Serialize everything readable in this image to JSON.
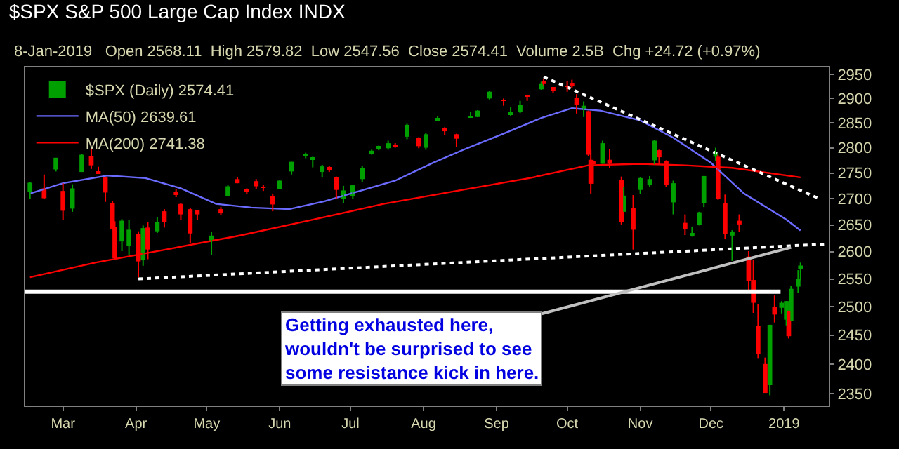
{
  "chart_data": {
    "type": "candlestick",
    "title": "$SPX S&P 500 Large Cap Index INDX",
    "subtitle": "8-Jan-2019   Open 2568.11  High 2579.82  Low 2547.56  Close 2574.41  Volume 2.5B  Chg +24.72 (+0.97%)",
    "log": "y",
    "grid": false,
    "legend": "top left",
    "line_style": "solid",
    "marker": "none",
    "xlim": [
      "2018-02-13",
      "2019-01-20"
    ],
    "xticks": [
      {
        "value": "2018-03-01",
        "label": "Mar"
      },
      {
        "value": "2018-04-01",
        "label": "Apr"
      },
      {
        "value": "2018-05-01",
        "label": "May"
      },
      {
        "value": "2018-06-01",
        "label": "Jun"
      },
      {
        "value": "2018-07-01",
        "label": "Jul"
      },
      {
        "value": "2018-08-01",
        "label": "Aug"
      },
      {
        "value": "2018-09-01",
        "label": "Sep"
      },
      {
        "value": "2018-10-01",
        "label": "Oct"
      },
      {
        "value": "2018-11-01",
        "label": "Nov"
      },
      {
        "value": "2018-12-01",
        "label": "Dec"
      },
      {
        "value": "2019-01-01",
        "label": "2019"
      }
    ],
    "ylim": [
      2330,
      2965
    ],
    "yticks": [
      2350,
      2400,
      2450,
      2500,
      2550,
      2600,
      2650,
      2700,
      2750,
      2800,
      2850,
      2900,
      2950
    ],
    "ref_lines": [
      {
        "axis": "y",
        "value": 2527,
        "color": "#ffffff",
        "line_style": "solid"
      }
    ],
    "annotations": [
      {
        "text": "Getting exhausted here,\nwouldn't be surprised to see\nsome resistance kick in here.",
        "x": "2019-01-04",
        "y": 2608
      }
    ],
    "series": [
      {
        "name": "$SPX (Daily) 2574.41",
        "x": [
          "2018-02-15",
          "2018-02-21",
          "2018-02-26",
          "2018-03-01",
          "2018-03-05",
          "2018-03-09",
          "2018-03-13",
          "2018-03-16",
          "2018-03-19",
          "2018-03-22",
          "2018-03-23",
          "2018-03-26",
          "2018-03-29",
          "2018-04-02",
          "2018-04-04",
          "2018-04-06",
          "2018-04-10",
          "2018-04-13",
          "2018-04-18",
          "2018-04-20",
          "2018-04-24",
          "2018-04-27",
          "2018-05-03",
          "2018-05-07",
          "2018-05-10",
          "2018-05-14",
          "2018-05-18",
          "2018-05-22",
          "2018-05-25",
          "2018-05-29",
          "2018-06-01",
          "2018-06-06",
          "2018-06-12",
          "2018-06-15",
          "2018-06-19",
          "2018-06-22",
          "2018-06-25",
          "2018-06-28",
          "2018-07-02",
          "2018-07-06",
          "2018-07-10",
          "2018-07-13",
          "2018-07-17",
          "2018-07-20",
          "2018-07-25",
          "2018-07-30",
          "2018-08-02",
          "2018-08-07",
          "2018-08-10",
          "2018-08-15",
          "2018-08-21",
          "2018-08-24",
          "2018-08-29",
          "2018-09-04",
          "2018-09-07",
          "2018-09-11",
          "2018-09-14",
          "2018-09-20",
          "2018-09-21",
          "2018-09-25",
          "2018-10-01",
          "2018-10-03",
          "2018-10-05",
          "2018-10-08",
          "2018-10-10",
          "2018-10-11",
          "2018-10-12",
          "2018-10-16",
          "2018-10-19",
          "2018-10-24",
          "2018-10-25",
          "2018-10-29",
          "2018-11-01",
          "2018-11-05",
          "2018-11-07",
          "2018-11-09",
          "2018-11-12",
          "2018-11-15",
          "2018-11-20",
          "2018-11-23",
          "2018-11-26",
          "2018-11-28",
          "2018-12-03",
          "2018-12-04",
          "2018-12-07",
          "2018-12-10",
          "2018-12-13",
          "2018-12-17",
          "2018-12-19",
          "2018-12-21",
          "2018-12-24",
          "2018-12-26",
          "2018-12-28",
          "2018-12-31",
          "2019-01-02",
          "2019-01-03",
          "2019-01-04",
          "2019-01-07",
          "2019-01-08"
        ],
        "ohlc": [
          [
            2713,
            2732,
            2700,
            2731
          ],
          [
            2720,
            2747,
            2700,
            2701
          ],
          [
            2757,
            2780,
            2753,
            2780
          ],
          [
            2715,
            2730,
            2659,
            2677
          ],
          [
            2681,
            2728,
            2675,
            2720
          ],
          [
            2752,
            2787,
            2752,
            2786
          ],
          [
            2784,
            2802,
            2758,
            2765
          ],
          [
            2750,
            2762,
            2749,
            2752
          ],
          [
            2741,
            2741,
            2694,
            2712
          ],
          [
            2691,
            2695,
            2641,
            2643
          ],
          [
            2646,
            2657,
            2586,
            2588
          ],
          [
            2619,
            2661,
            2601,
            2658
          ],
          [
            2610,
            2659,
            2594,
            2641
          ],
          [
            2633,
            2638,
            2553,
            2582
          ],
          [
            2584,
            2649,
            2574,
            2644
          ],
          [
            2645,
            2656,
            2586,
            2604
          ],
          [
            2638,
            2665,
            2635,
            2656
          ],
          [
            2676,
            2680,
            2645,
            2656
          ],
          [
            2710,
            2718,
            2703,
            2708
          ],
          [
            2690,
            2692,
            2660,
            2670
          ],
          [
            2680,
            2683,
            2616,
            2634
          ],
          [
            2675,
            2677,
            2659,
            2670
          ],
          [
            2620,
            2637,
            2594,
            2630
          ],
          [
            2680,
            2684,
            2669,
            2672
          ],
          [
            2705,
            2726,
            2705,
            2724
          ],
          [
            2738,
            2742,
            2730,
            2730
          ],
          [
            2717,
            2720,
            2709,
            2713
          ],
          [
            2734,
            2738,
            2719,
            2724
          ],
          [
            2723,
            2727,
            2715,
            2721
          ],
          [
            2705,
            2710,
            2676,
            2689
          ],
          [
            2719,
            2736,
            2719,
            2735
          ],
          [
            2753,
            2772,
            2747,
            2772
          ],
          [
            2785,
            2790,
            2779,
            2786
          ],
          [
            2777,
            2782,
            2761,
            2780
          ],
          [
            2752,
            2766,
            2741,
            2763
          ],
          [
            2760,
            2764,
            2752,
            2755
          ],
          [
            2742,
            2743,
            2699,
            2717
          ],
          [
            2699,
            2725,
            2692,
            2716
          ],
          [
            2705,
            2727,
            2699,
            2726
          ],
          [
            2738,
            2764,
            2733,
            2760
          ],
          [
            2788,
            2796,
            2786,
            2794
          ],
          [
            2799,
            2804,
            2795,
            2801
          ],
          [
            2799,
            2814,
            2796,
            2809
          ],
          [
            2804,
            2809,
            2800,
            2802
          ],
          [
            2822,
            2848,
            2817,
            2846
          ],
          [
            2819,
            2821,
            2799,
            2803
          ],
          [
            2800,
            2829,
            2796,
            2827
          ],
          [
            2855,
            2864,
            2854,
            2858
          ],
          [
            2838,
            2841,
            2825,
            2833
          ],
          [
            2827,
            2828,
            2802,
            2818
          ],
          [
            2861,
            2873,
            2861,
            2863
          ],
          [
            2862,
            2876,
            2862,
            2875
          ],
          [
            2900,
            2916,
            2898,
            2914
          ],
          [
            2897,
            2900,
            2885,
            2896
          ],
          [
            2868,
            2883,
            2864,
            2872
          ],
          [
            2872,
            2895,
            2870,
            2887
          ],
          [
            2906,
            2908,
            2895,
            2905
          ],
          [
            2919,
            2935,
            2918,
            2930
          ],
          [
            2937,
            2941,
            2927,
            2930
          ],
          [
            2921,
            2923,
            2912,
            2916
          ],
          [
            2926,
            2937,
            2914,
            2924
          ],
          [
            2931,
            2939,
            2921,
            2925
          ],
          [
            2902,
            2909,
            2869,
            2886
          ],
          [
            2877,
            2894,
            2862,
            2885
          ],
          [
            2874,
            2875,
            2784,
            2786
          ],
          [
            2776,
            2796,
            2710,
            2729
          ],
          [
            2771,
            2775,
            2729,
            2768
          ],
          [
            2768,
            2814,
            2768,
            2809
          ],
          [
            2776,
            2797,
            2760,
            2768
          ],
          [
            2737,
            2743,
            2651,
            2656
          ],
          [
            2675,
            2722,
            2675,
            2706
          ],
          [
            2682,
            2707,
            2604,
            2641
          ],
          [
            2717,
            2742,
            2709,
            2740
          ],
          [
            2726,
            2744,
            2723,
            2738
          ],
          [
            2775,
            2815,
            2767,
            2814
          ],
          [
            2795,
            2796,
            2766,
            2781
          ],
          [
            2773,
            2775,
            2722,
            2726
          ],
          [
            2693,
            2735,
            2670,
            2730
          ],
          [
            2654,
            2670,
            2631,
            2642
          ],
          [
            2630,
            2647,
            2628,
            2633
          ],
          [
            2650,
            2675,
            2649,
            2674
          ],
          [
            2692,
            2744,
            2684,
            2744
          ],
          [
            2782,
            2800,
            2774,
            2790
          ],
          [
            2782,
            2786,
            2698,
            2700
          ],
          [
            2691,
            2708,
            2623,
            2633
          ],
          [
            2630,
            2640,
            2583,
            2637
          ],
          [
            2658,
            2670,
            2637,
            2651
          ],
          [
            2591,
            2601,
            2530,
            2546
          ],
          [
            2548,
            2585,
            2489,
            2507
          ],
          [
            2466,
            2505,
            2409,
            2417
          ],
          [
            2400,
            2411,
            2351,
            2351
          ],
          [
            2364,
            2468,
            2347,
            2468
          ],
          [
            2499,
            2520,
            2472,
            2486
          ],
          [
            2498,
            2510,
            2488,
            2507
          ],
          [
            2477,
            2510,
            2467,
            2510
          ],
          [
            2492,
            2493,
            2444,
            2448
          ],
          [
            2475,
            2538,
            2474,
            2532
          ],
          [
            2536,
            2566,
            2525,
            2550
          ],
          [
            2568.11,
            2579.82,
            2547.56,
            2574.41
          ]
        ],
        "colors": [
          "#00a000",
          "#ff0000",
          "#00a000",
          "#ff0000",
          "#00a000",
          "#00a000",
          "#ff0000",
          "#ff0000",
          "#ff0000",
          "#ff0000",
          "#ff0000",
          "#00a000",
          "#00a000",
          "#ff0000",
          "#00a000",
          "#ff0000",
          "#00a000",
          "#ff0000",
          "#ff0000",
          "#ff0000",
          "#ff0000",
          "#ff0000",
          "#00a000",
          "#ff0000",
          "#00a000",
          "#ff0000",
          "#ff0000",
          "#ff0000",
          "#ff0000",
          "#ff0000",
          "#00a000",
          "#00a000",
          "#00a000",
          "#00a000",
          "#00a000",
          "#ff0000",
          "#ff0000",
          "#00a000",
          "#00a000",
          "#00a000",
          "#00a000",
          "#00a000",
          "#00a000",
          "#ff0000",
          "#00a000",
          "#ff0000",
          "#00a000",
          "#00a000",
          "#ff0000",
          "#ff0000",
          "#00a000",
          "#00a000",
          "#00a000",
          "#ff0000",
          "#00a000",
          "#00a000",
          "#ff0000",
          "#00a000",
          "#ff0000",
          "#ff0000",
          "#ff0000",
          "#ff0000",
          "#ff0000",
          "#00a000",
          "#ff0000",
          "#ff0000",
          "#ff0000",
          "#00a000",
          "#ff0000",
          "#ff0000",
          "#00a000",
          "#ff0000",
          "#00a000",
          "#00a000",
          "#00a000",
          "#ff0000",
          "#ff0000",
          "#00a000",
          "#ff0000",
          "#00a000",
          "#00a000",
          "#00a000",
          "#00a000",
          "#ff0000",
          "#ff0000",
          "#00a000",
          "#ff0000",
          "#ff0000",
          "#ff0000",
          "#ff0000",
          "#ff0000",
          "#00a000",
          "#ff0000",
          "#00a000",
          "#00a000",
          "#ff0000",
          "#00a000",
          "#00a000",
          "#00a000"
        ]
      },
      {
        "name": "MA(50) 2639.61",
        "type": "line",
        "color": "#6b6bff",
        "x": [
          "2018-02-15",
          "2018-03-01",
          "2018-03-20",
          "2018-04-05",
          "2018-04-20",
          "2018-05-05",
          "2018-05-20",
          "2018-06-05",
          "2018-06-20",
          "2018-07-05",
          "2018-07-20",
          "2018-08-05",
          "2018-08-20",
          "2018-09-05",
          "2018-09-20",
          "2018-10-03",
          "2018-10-15",
          "2018-11-01",
          "2018-11-15",
          "2018-12-01",
          "2018-12-15",
          "2019-01-02",
          "2019-01-08"
        ],
        "values": [
          2710,
          2730,
          2745,
          2740,
          2720,
          2690,
          2683,
          2680,
          2695,
          2715,
          2735,
          2770,
          2800,
          2830,
          2860,
          2880,
          2875,
          2855,
          2820,
          2770,
          2710,
          2660,
          2639.61
        ]
      },
      {
        "name": "MA(200) 2741.38",
        "type": "line",
        "color": "#ff0000",
        "x": [
          "2018-02-15",
          "2018-03-15",
          "2018-04-15",
          "2018-05-15",
          "2018-06-15",
          "2018-07-15",
          "2018-08-15",
          "2018-09-15",
          "2018-10-10",
          "2018-11-01",
          "2018-11-20",
          "2018-12-10",
          "2019-01-08"
        ],
        "values": [
          2553,
          2580,
          2605,
          2630,
          2660,
          2690,
          2715,
          2740,
          2765,
          2768,
          2765,
          2760,
          2741.38
        ]
      },
      {
        "type": "line",
        "color": "#ffffff",
        "line_style": "dotted",
        "x": [
          "2018-09-21",
          "2019-01-16"
        ],
        "values": [
          2945,
          2700
        ]
      },
      {
        "type": "line",
        "color": "#ffffff",
        "line_style": "dotted",
        "x": [
          "2018-04-02",
          "2019-01-18"
        ],
        "values": [
          2550,
          2614
        ]
      }
    ]
  }
}
